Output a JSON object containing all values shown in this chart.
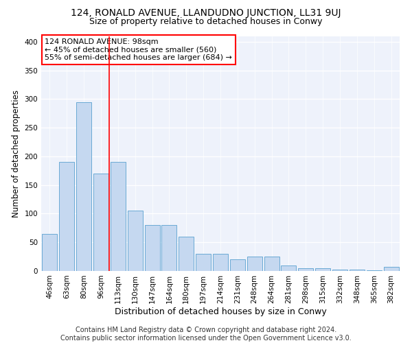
{
  "title": "124, RONALD AVENUE, LLANDUDNO JUNCTION, LL31 9UJ",
  "subtitle": "Size of property relative to detached houses in Conwy",
  "xlabel": "Distribution of detached houses by size in Conwy",
  "ylabel": "Number of detached properties",
  "categories": [
    "46sqm",
    "63sqm",
    "80sqm",
    "96sqm",
    "113sqm",
    "130sqm",
    "147sqm",
    "164sqm",
    "180sqm",
    "197sqm",
    "214sqm",
    "231sqm",
    "248sqm",
    "264sqm",
    "281sqm",
    "298sqm",
    "315sqm",
    "332sqm",
    "348sqm",
    "365sqm",
    "382sqm"
  ],
  "values": [
    65,
    190,
    295,
    170,
    190,
    105,
    80,
    80,
    60,
    30,
    30,
    20,
    25,
    25,
    10,
    5,
    5,
    2,
    2,
    1,
    7
  ],
  "bar_color": "#c5d8f0",
  "bar_edge_color": "#6aaad4",
  "vline_x": 3.5,
  "vline_color": "red",
  "annotation_text": "124 RONALD AVENUE: 98sqm\n← 45% of detached houses are smaller (560)\n55% of semi-detached houses are larger (684) →",
  "annotation_box_color": "white",
  "annotation_box_edge_color": "red",
  "ylim": [
    0,
    410
  ],
  "background_color": "#eef2fb",
  "footer_text": "Contains HM Land Registry data © Crown copyright and database right 2024.\nContains public sector information licensed under the Open Government Licence v3.0.",
  "title_fontsize": 10,
  "subtitle_fontsize": 9,
  "xlabel_fontsize": 9,
  "ylabel_fontsize": 8.5,
  "tick_fontsize": 7.5,
  "annotation_fontsize": 8,
  "footer_fontsize": 7
}
